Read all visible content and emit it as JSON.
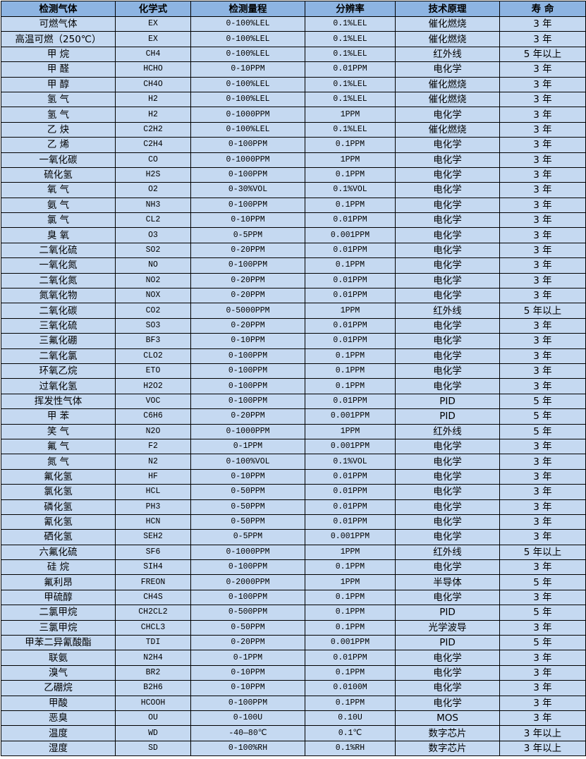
{
  "table": {
    "headers": [
      "检测气体",
      "化学式",
      "检测量程",
      "分辨率",
      "技术原理",
      "寿 命"
    ],
    "rows": [
      [
        "可燃气体",
        "EX",
        "0-100%LEL",
        "0.1%LEL",
        "催化燃烧",
        "3 年"
      ],
      [
        "高温可燃（250℃）",
        "EX",
        "0-100%LEL",
        "0.1%LEL",
        "催化燃烧",
        "3 年"
      ],
      [
        "甲 烷",
        "CH4",
        "0-100%LEL",
        "0.1%LEL",
        "红外线",
        "5 年以上"
      ],
      [
        "甲 醛",
        "HCHO",
        "0-10PPM",
        "0.01PPM",
        "电化学",
        "3 年"
      ],
      [
        "甲 醇",
        "CH4O",
        "0-100%LEL",
        "0.1%LEL",
        "催化燃烧",
        "3 年"
      ],
      [
        "氢 气",
        "H2",
        "0-100%LEL",
        "0.1%LEL",
        "催化燃烧",
        "3 年"
      ],
      [
        "氢 气",
        "H2",
        "0-1000PPM",
        "1PPM",
        "电化学",
        "3 年"
      ],
      [
        "乙 炔",
        "C2H2",
        "0-100%LEL",
        "0.1%LEL",
        "催化燃烧",
        "3 年"
      ],
      [
        "乙 烯",
        "C2H4",
        "0-100PPM",
        "0.1PPM",
        "电化学",
        "3 年"
      ],
      [
        "一氧化碳",
        "CO",
        "0-1000PPM",
        "1PPM",
        "电化学",
        "3 年"
      ],
      [
        "硫化氢",
        "H2S",
        "0-100PPM",
        "0.1PPM",
        "电化学",
        "3 年"
      ],
      [
        "氧 气",
        "O2",
        "0-30%VOL",
        "0.1%VOL",
        "电化学",
        "3 年"
      ],
      [
        "氨 气",
        "NH3",
        "0-100PPM",
        "0.1PPM",
        "电化学",
        "3 年"
      ],
      [
        "氯 气",
        "CL2",
        "0-10PPM",
        "0.01PPM",
        "电化学",
        "3 年"
      ],
      [
        "臭 氧",
        "O3",
        "0-5PPM",
        "0.001PPM",
        "电化学",
        "3 年"
      ],
      [
        "二氧化硫",
        "SO2",
        "0-20PPM",
        "0.01PPM",
        "电化学",
        "3 年"
      ],
      [
        "一氧化氮",
        "NO",
        "0-100PPM",
        "0.1PPM",
        "电化学",
        "3 年"
      ],
      [
        "二氧化氮",
        "NO2",
        "0-20PPM",
        "0.01PPM",
        "电化学",
        "3 年"
      ],
      [
        "氮氧化物",
        "NOX",
        "0-20PPM",
        "0.01PPM",
        "电化学",
        "3 年"
      ],
      [
        "二氧化碳",
        "CO2",
        "0-5000PPM",
        "1PPM",
        "红外线",
        "5 年以上"
      ],
      [
        "三氧化硫",
        "SO3",
        "0-20PPM",
        "0.01PPM",
        "电化学",
        "3 年"
      ],
      [
        "三氟化硼",
        "BF3",
        "0-10PPM",
        "0.01PPM",
        "电化学",
        "3 年"
      ],
      [
        "二氧化氯",
        "CLO2",
        "0-100PPM",
        "0.1PPM",
        "电化学",
        "3 年"
      ],
      [
        "环氧乙烷",
        "ETO",
        "0-100PPM",
        "0.1PPM",
        "电化学",
        "3 年"
      ],
      [
        "过氧化氢",
        "H2O2",
        "0-100PPM",
        "0.1PPM",
        "电化学",
        "3 年"
      ],
      [
        "挥发性气体",
        "VOC",
        "0-100PPM",
        "0.01PPM",
        "PID",
        "5 年"
      ],
      [
        "甲 苯",
        "C6H6",
        "0-20PPM",
        "0.001PPM",
        "PID",
        "5 年"
      ],
      [
        "笑 气",
        "N2O",
        "0-1000PPM",
        "1PPM",
        "红外线",
        "5 年"
      ],
      [
        "氟 气",
        "F2",
        "0-1PPM",
        "0.001PPM",
        "电化学",
        "3 年"
      ],
      [
        "氮 气",
        "N2",
        "0-100%VOL",
        "0.1%VOL",
        "电化学",
        "3 年"
      ],
      [
        "氟化氢",
        "HF",
        "0-10PPM",
        "0.01PPM",
        "电化学",
        "3 年"
      ],
      [
        "氯化氢",
        "HCL",
        "0-50PPM",
        "0.01PPM",
        "电化学",
        "3 年"
      ],
      [
        "磷化氢",
        "PH3",
        "0-50PPM",
        "0.01PPM",
        "电化学",
        "3 年"
      ],
      [
        "氰化氢",
        "HCN",
        "0-50PPM",
        "0.01PPM",
        "电化学",
        "3 年"
      ],
      [
        "硒化氢",
        "SEH2",
        "0-5PPM",
        "0.001PPM",
        "电化学",
        "3 年"
      ],
      [
        "六氟化硫",
        "SF6",
        "0-1000PPM",
        "1PPM",
        "红外线",
        "5 年以上"
      ],
      [
        "硅 烷",
        "SIH4",
        "0-100PPM",
        "0.1PPM",
        "电化学",
        "3 年"
      ],
      [
        "氟利昂",
        "FREON",
        "0-2000PPM",
        "1PPM",
        "半导体",
        "5 年"
      ],
      [
        "甲硫醇",
        "CH4S",
        "0-100PPM",
        "0.1PPM",
        "电化学",
        "3 年"
      ],
      [
        "二氯甲烷",
        "CH2CL2",
        "0-500PPM",
        "0.1PPM",
        "PID",
        "5 年"
      ],
      [
        "三氯甲烷",
        "CHCL3",
        "0-50PPM",
        "0.1PPM",
        "光学波导",
        "3 年"
      ],
      [
        "甲苯二异氰酸酯",
        "TDI",
        "0-20PPM",
        "0.001PPM",
        "PID",
        "5 年"
      ],
      [
        "联氨",
        "N2H4",
        "0-1PPM",
        "0.01PPM",
        "电化学",
        "3 年"
      ],
      [
        "溴气",
        "BR2",
        "0-10PPM",
        "0.1PPM",
        "电化学",
        "3 年"
      ],
      [
        "乙硼烷",
        "B2H6",
        "0-10PPM",
        "0.0100M",
        "电化学",
        "3 年"
      ],
      [
        "甲酸",
        "HCOOH",
        "0-100PPM",
        "0.1PPM",
        "电化学",
        "3 年"
      ],
      [
        "恶臭",
        "OU",
        "0-100U",
        "0.10U",
        "MOS",
        "3 年"
      ],
      [
        "温度",
        "WD",
        "-40—80℃",
        "0.1℃",
        "数字芯片",
        "3 年以上"
      ],
      [
        "湿度",
        "SD",
        "0-100%RH",
        "0.1%RH",
        "数字芯片",
        "3 年以上"
      ]
    ]
  },
  "colors": {
    "header_bg": "#8db4e2",
    "row_bg": "#c5d9f1",
    "border": "#000000"
  }
}
